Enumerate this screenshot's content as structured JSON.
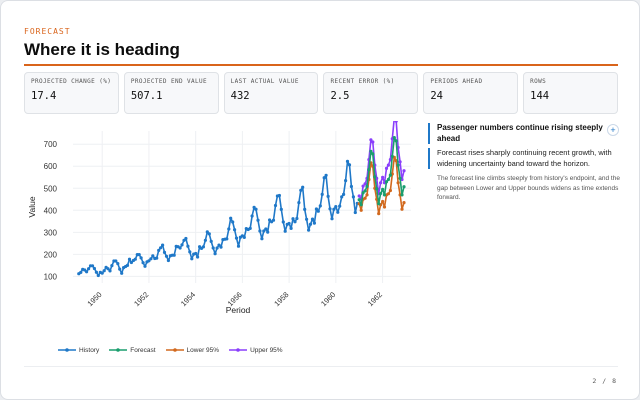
{
  "header": {
    "eyebrow": "FORECAST",
    "title": "Where it is heading"
  },
  "kpis": [
    {
      "label": "PROJECTED CHANGE (%)",
      "value": "17.4"
    },
    {
      "label": "PROJECTED END VALUE",
      "value": "507.1"
    },
    {
      "label": "LAST ACTUAL VALUE",
      "value": "432"
    },
    {
      "label": "RECENT ERROR (%)",
      "value": "2.5"
    },
    {
      "label": "PERIODS AHEAD",
      "value": "24"
    },
    {
      "label": "ROWS",
      "value": "144"
    }
  ],
  "insights": {
    "headline": "Passenger numbers continue rising steeply ahead",
    "detail": "Forecast rises sharply continuing recent growth, with widening uncertainty band toward the horizon.",
    "note": "The forecast line climbs steeply from history's endpoint, and the gap between Lower and Upper bounds widens as time extends forward.",
    "expand_icon": "plus-icon"
  },
  "pager": "2 / 8",
  "colors": {
    "accent": "#d9641b",
    "history": "#1f78c8",
    "forecast": "#1a9e6e",
    "lower": "#d2691e",
    "upper": "#8a3ffc"
  },
  "chart_data": {
    "type": "line",
    "xlabel": "Period",
    "ylabel": "Value",
    "x_ticks": [
      "1950",
      "1952",
      "1954",
      "1956",
      "1958",
      "1960",
      "1962"
    ],
    "y_ticks": [
      100,
      200,
      300,
      400,
      500,
      600,
      700
    ],
    "ylim": [
      70,
      760
    ],
    "grid": true,
    "legend_position": "bottom",
    "history": {
      "name": "History",
      "start": "1949-01",
      "values": [
        112,
        118,
        132,
        129,
        121,
        135,
        148,
        148,
        136,
        119,
        104,
        118,
        115,
        126,
        141,
        135,
        125,
        149,
        170,
        170,
        158,
        133,
        114,
        140,
        145,
        150,
        178,
        163,
        172,
        178,
        199,
        199,
        184,
        162,
        146,
        166,
        171,
        180,
        193,
        181,
        183,
        218,
        230,
        242,
        209,
        191,
        172,
        194,
        196,
        196,
        236,
        235,
        229,
        243,
        264,
        272,
        237,
        211,
        180,
        201,
        204,
        188,
        235,
        227,
        234,
        264,
        302,
        293,
        259,
        229,
        203,
        229,
        242,
        233,
        267,
        269,
        270,
        315,
        364,
        347,
        312,
        274,
        237,
        278,
        284,
        277,
        317,
        313,
        318,
        374,
        413,
        405,
        355,
        306,
        271,
        306,
        315,
        301,
        356,
        348,
        355,
        422,
        465,
        467,
        404,
        347,
        305,
        336,
        340,
        318,
        362,
        348,
        363,
        435,
        491,
        505,
        404,
        359,
        310,
        337,
        360,
        342,
        406,
        396,
        420,
        472,
        548,
        559,
        463,
        407,
        362,
        405,
        417,
        391,
        419,
        461,
        472,
        535,
        622,
        606,
        508,
        461,
        390,
        432
      ]
    },
    "forecast_start": "1961-01",
    "series": [
      {
        "name": "Forecast",
        "values": [
          448,
          425,
          480,
          488,
          508,
          585,
          668,
          656,
          552,
          498,
          430,
          476,
          495,
          470,
          530,
          540,
          560,
          645,
          730,
          715,
          605,
          545,
          470,
          507
        ]
      },
      {
        "name": "Lower 95%",
        "values": [
          430,
          400,
          450,
          455,
          470,
          540,
          615,
          600,
          500,
          450,
          385,
          425,
          440,
          415,
          470,
          475,
          490,
          565,
          640,
          625,
          525,
          470,
          405,
          435
        ]
      },
      {
        "name": "Upper 95%",
        "values": [
          465,
          450,
          510,
          520,
          545,
          630,
          720,
          710,
          605,
          545,
          475,
          525,
          550,
          525,
          590,
          605,
          630,
          725,
          820,
          805,
          685,
          620,
          540,
          580
        ]
      }
    ]
  }
}
